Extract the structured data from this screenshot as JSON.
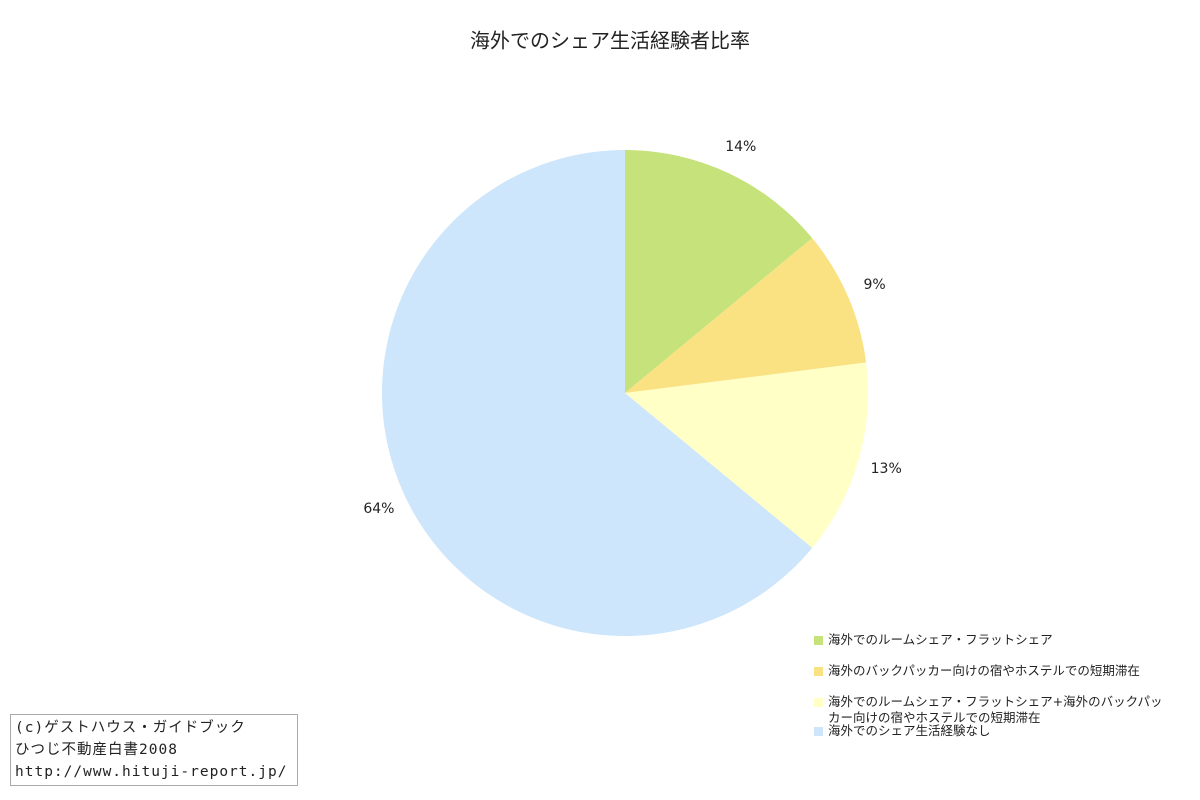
{
  "chart_data": {
    "type": "pie",
    "title": "海外でのシェア生活経験者比率",
    "categories": [
      "海外でのルームシェア・フラットシェア",
      "海外のバックパッカー向けの宿やホステルでの短期滞在",
      "海外でのルームシェア・フラットシェア+海外のバックパッカー向けの宿やホステルでの短期滞在",
      "海外でのシェア生活経験なし"
    ],
    "values": [
      14,
      9,
      13,
      64
    ],
    "value_labels": [
      "14%",
      "9%",
      "13%",
      "64%"
    ],
    "colors": [
      "#c6e27a",
      "#fae283",
      "#ffffc6",
      "#cde6fb"
    ],
    "legend": "bottom-right"
  },
  "credit": [
    "(c)ゲストハウス・ガイドブック",
    "ひつじ不動産白書2008",
    "http://www.hituji-report.jp/"
  ]
}
